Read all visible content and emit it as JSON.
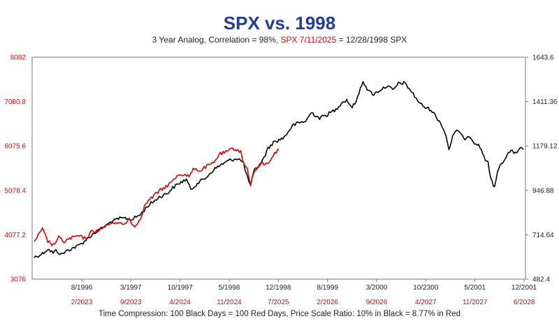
{
  "chart_data": {
    "type": "line",
    "title": "SPX vs. 1998",
    "subtitle_parts": {
      "black": "3 Year Analog, Correlation = 98%,",
      "red": "SPX 7/11/2025",
      "tail": "= 12/28/1998 SPX"
    },
    "footer": "Time Compression: 100 Black Days = 100 Red Days,  Price Scale Ratio: 10% in Black = 8.77% in Red",
    "left_axis": {
      "color": "#d01010",
      "ticks": [
        "8082",
        "7080.8",
        "6075.6",
        "5078.4",
        "4077.2",
        "3076"
      ],
      "range": [
        3076,
        8082
      ]
    },
    "right_axis": {
      "color": "#222222",
      "ticks": [
        "1643.6",
        "1411.36",
        "1179.12",
        "946.88",
        "714.64",
        "482.4"
      ],
      "range": [
        482.4,
        1643.6
      ]
    },
    "x_axis_black": [
      "8/1996",
      "3/1997",
      "10/1997",
      "5/1998",
      "12/1998",
      "8/1999",
      "3/2000",
      "10/2300",
      "5/2001",
      "12/2001"
    ],
    "x_axis_red": [
      "2/2023",
      "9/2023",
      "4/2024",
      "11/2024",
      "7/2025",
      "2/2026",
      "9/2026",
      "4/2027",
      "11/2027",
      "6/2028"
    ],
    "series": [
      {
        "color": "#000000",
        "axis": "right",
        "points": [
          [
            0.0,
            596
          ],
          [
            1.5,
            616
          ],
          [
            2.5,
            640
          ],
          [
            3.5,
            620
          ],
          [
            4.0,
            632
          ],
          [
            5.0,
            612
          ],
          [
            6.0,
            630
          ],
          [
            7.0,
            645
          ],
          [
            8.0,
            655
          ],
          [
            9.0,
            675
          ],
          [
            10.0,
            700
          ],
          [
            11.0,
            723
          ],
          [
            12.0,
            740
          ],
          [
            13.0,
            758
          ],
          [
            14.0,
            780
          ],
          [
            15.5,
            798
          ],
          [
            16.5,
            802
          ],
          [
            18.0,
            795
          ],
          [
            19.5,
            820
          ],
          [
            21.0,
            868
          ],
          [
            23.0,
            912
          ],
          [
            24.5,
            932
          ],
          [
            25.5,
            960
          ],
          [
            27.0,
            990
          ],
          [
            28.0,
            1005
          ],
          [
            28.8,
            950
          ],
          [
            30.0,
            985
          ],
          [
            31.5,
            1010
          ],
          [
            33.0,
            1055
          ],
          [
            34.5,
            1083
          ],
          [
            36.0,
            1105
          ],
          [
            37.5,
            1115
          ],
          [
            38.5,
            1090
          ],
          [
            39.3,
            1005
          ],
          [
            39.8,
            975
          ],
          [
            40.5,
            1050
          ],
          [
            41.8,
            1090
          ],
          [
            43.0,
            1165
          ],
          [
            44.0,
            1198
          ],
          [
            45.0,
            1210
          ],
          [
            46.0,
            1225
          ],
          [
            47.5,
            1285
          ],
          [
            48.5,
            1298
          ],
          [
            50.0,
            1310
          ],
          [
            51.0,
            1355
          ],
          [
            52.5,
            1325
          ],
          [
            54.0,
            1345
          ],
          [
            55.5,
            1370
          ],
          [
            56.5,
            1405
          ],
          [
            57.5,
            1420
          ],
          [
            58.5,
            1380
          ],
          [
            59.5,
            1430
          ],
          [
            60.0,
            1480
          ],
          [
            60.5,
            1520
          ],
          [
            61.5,
            1465
          ],
          [
            62.5,
            1450
          ],
          [
            63.5,
            1470
          ],
          [
            65.0,
            1495
          ],
          [
            66.0,
            1470
          ],
          [
            67.0,
            1505
          ],
          [
            68.0,
            1510
          ],
          [
            68.5,
            1495
          ],
          [
            69.0,
            1480
          ],
          [
            70.0,
            1440
          ],
          [
            71.0,
            1400
          ],
          [
            72.0,
            1380
          ],
          [
            73.0,
            1370
          ],
          [
            74.0,
            1330
          ],
          [
            75.0,
            1290
          ],
          [
            75.8,
            1230
          ],
          [
            76.3,
            1160
          ],
          [
            77.0,
            1230
          ],
          [
            78.0,
            1265
          ],
          [
            79.0,
            1215
          ],
          [
            80.0,
            1235
          ],
          [
            81.0,
            1198
          ],
          [
            82.0,
            1175
          ],
          [
            83.0,
            1110
          ],
          [
            83.5,
            1090
          ],
          [
            84.0,
            1005
          ],
          [
            84.7,
            965
          ],
          [
            85.5,
            1070
          ],
          [
            86.5,
            1110
          ],
          [
            87.5,
            1150
          ],
          [
            88.5,
            1145
          ],
          [
            89.5,
            1165
          ],
          [
            90.0,
            1160
          ]
        ]
      },
      {
        "color": "#e00000",
        "axis": "left",
        "points": [
          [
            0.0,
            3930
          ],
          [
            1.5,
            4200
          ],
          [
            2.5,
            3930
          ],
          [
            3.5,
            3840
          ],
          [
            4.5,
            4010
          ],
          [
            5.5,
            3920
          ],
          [
            6.5,
            3990
          ],
          [
            8.0,
            4050
          ],
          [
            9.5,
            3990
          ],
          [
            10.5,
            4140
          ],
          [
            12.0,
            4190
          ],
          [
            13.0,
            4280
          ],
          [
            15.0,
            4370
          ],
          [
            16.5,
            4300
          ],
          [
            17.5,
            4440
          ],
          [
            18.5,
            4240
          ],
          [
            19.5,
            4450
          ],
          [
            20.5,
            4780
          ],
          [
            22.0,
            4960
          ],
          [
            23.0,
            5060
          ],
          [
            24.5,
            5190
          ],
          [
            25.5,
            5290
          ],
          [
            26.5,
            5440
          ],
          [
            27.5,
            5440
          ],
          [
            28.5,
            5390
          ],
          [
            29.5,
            5590
          ],
          [
            30.5,
            5510
          ],
          [
            31.5,
            5610
          ],
          [
            33.0,
            5690
          ],
          [
            34.0,
            5890
          ],
          [
            35.5,
            5950
          ],
          [
            36.5,
            6020
          ],
          [
            37.5,
            5990
          ],
          [
            38.0,
            5940
          ],
          [
            38.6,
            5660
          ],
          [
            39.2,
            5560
          ],
          [
            39.8,
            5210
          ],
          [
            40.3,
            5440
          ],
          [
            41.0,
            5590
          ],
          [
            42.0,
            5700
          ],
          [
            42.5,
            5650
          ],
          [
            43.0,
            5690
          ],
          [
            44.0,
            5880
          ],
          [
            45.0,
            6000
          ]
        ]
      }
    ]
  }
}
